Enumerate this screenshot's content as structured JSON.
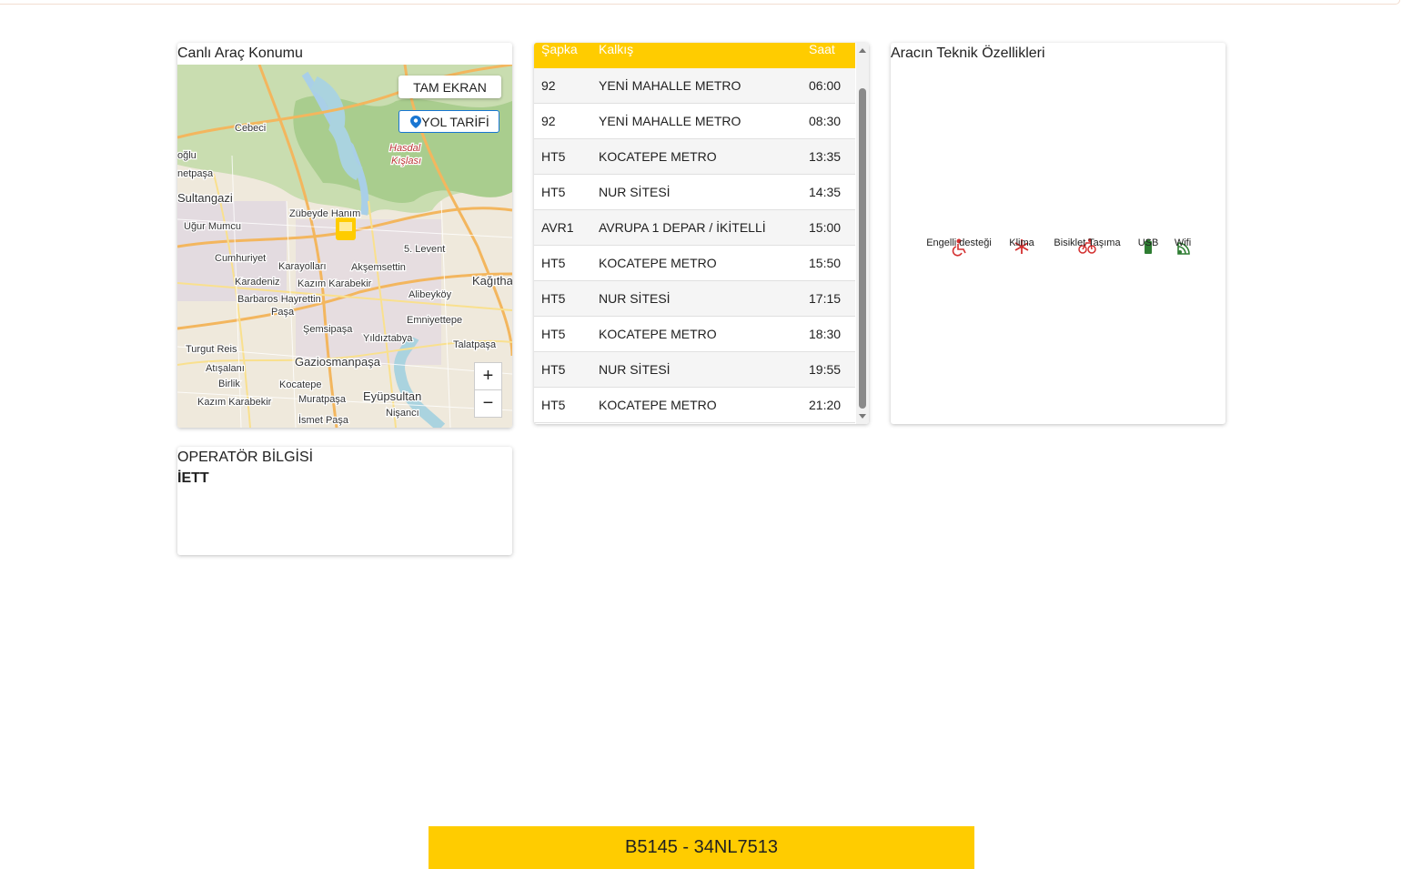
{
  "map_card": {
    "title": "Canlı Araç Konumu",
    "buttons": [
      "TAM EKRAN",
      "YOL TARİFİ"
    ],
    "zoom": [
      "+",
      "−"
    ],
    "labels": [
      "Cebeci",
      "Sultangazi",
      "Uğur Mumcu",
      "Zübeyde Hanım",
      "5. Levent",
      "Cumhuriyet",
      "Karayolları",
      "Akşemsettin",
      "Kağıtha",
      "Karadeniz",
      "Kazım Karabekir",
      "Alibeyköy",
      "Barbaros Hayrettin",
      "Paşa",
      "Emniyettepe",
      "Şemsipaşa",
      "Yıldıztabya",
      "Talatpaşa",
      "Turgut Reis",
      "Gaziosmanpaşa",
      "Atışalanı",
      "Birlik",
      "Kocatepe",
      "Muratpaşa",
      "Eyüpsultan",
      "Kazım Karabekir",
      "Nişancı",
      "İsmet Paşa",
      "Hasdal",
      "Kışlası",
      "netpaşa",
      "oğlu"
    ]
  },
  "schedule": {
    "columns": [
      "Şapka",
      "Kalkış",
      "Saat"
    ],
    "rows": [
      [
        "92",
        "YENİ MAHALLE METRO",
        "06:00"
      ],
      [
        "92",
        "YENİ MAHALLE METRO",
        "08:30"
      ],
      [
        "HT5",
        "KOCATEPE METRO",
        "13:35"
      ],
      [
        "HT5",
        "NUR SİTESİ",
        "14:35"
      ],
      [
        "AVR1",
        "AVRUPA 1 DEPAR / İKİTELLİ",
        "15:00"
      ],
      [
        "HT5",
        "KOCATEPE METRO",
        "15:50"
      ],
      [
        "HT5",
        "NUR SİTESİ",
        "17:15"
      ],
      [
        "HT5",
        "KOCATEPE METRO",
        "18:30"
      ],
      [
        "HT5",
        "NUR SİTESİ",
        "19:55"
      ],
      [
        "HT5",
        "KOCATEPE METRO",
        "21:20"
      ]
    ]
  },
  "features": {
    "title": "Aracın Teknik Özellikleri",
    "items": [
      "Engelli desteği",
      "Klima",
      "Bisiklet Taşıma",
      "USB",
      "Wifi"
    ]
  },
  "operator": {
    "title": "OPERATÖR BİLGİSİ",
    "name": "İETT"
  },
  "footer": {
    "vehicle": "B5145 - 34NL7513"
  }
}
